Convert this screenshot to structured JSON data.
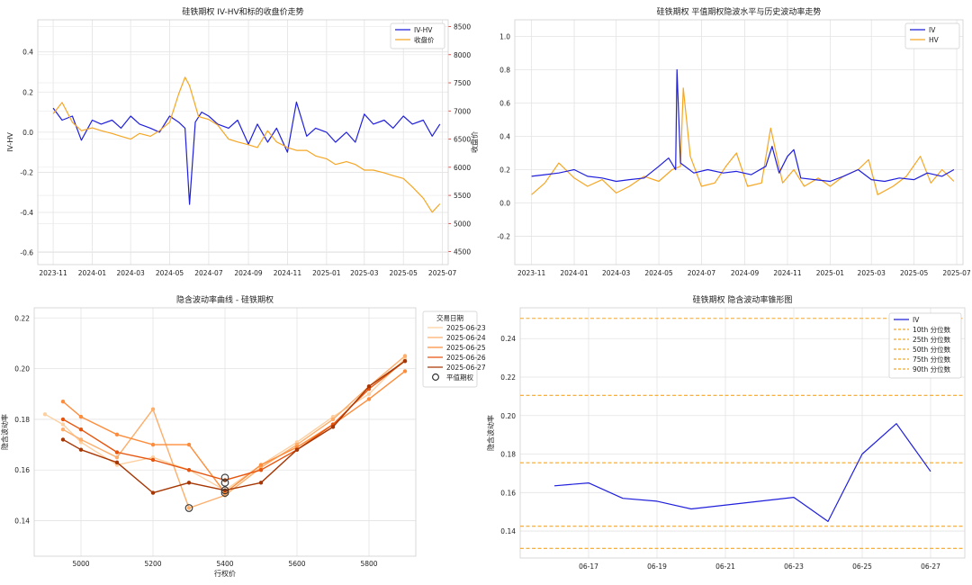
{
  "chart_data": [
    {
      "type": "line",
      "title": "硅铁期权 IV-HV和标的收盘价走势",
      "ylabel": "IV-HV",
      "y2label": "收盘价",
      "ylim": [
        -0.66,
        0.56
      ],
      "y2lim": [
        4270,
        8620
      ],
      "xlim": [
        "2023-10-08",
        "2025-07-10"
      ],
      "yticks": [
        0.4,
        0.2,
        0.0,
        -0.2,
        -0.4,
        -0.6
      ],
      "ytick_labels": [
        "0.4",
        "0.2",
        "0.0",
        "-0.2",
        "-0.4",
        "-0.6"
      ],
      "y2ticks": [
        8500,
        8000,
        7500,
        7000,
        6500,
        6000,
        5500,
        5000,
        4500
      ],
      "y2tick_labels": [
        "8500",
        "8000",
        "7500",
        "7000",
        "6500",
        "6000",
        "5500",
        "5000",
        "4500"
      ],
      "xticks": [
        "2023-11-01",
        "2024-01-01",
        "2024-03-01",
        "2024-05-01",
        "2024-07-01",
        "2024-09-01",
        "2024-11-01",
        "2025-01-01",
        "2025-03-01",
        "2025-05-01",
        "2025-07-01"
      ],
      "xtick_labels": [
        "2023-11",
        "2024-01",
        "2024-03",
        "2024-05",
        "2024-07",
        "2024-09",
        "2024-11",
        "2025-01",
        "2025-03",
        "2025-05",
        "2025-07"
      ],
      "grid": true,
      "legend": "top-right",
      "series": [
        {
          "name": "IV-HV",
          "axis": "left",
          "color": "#1f1fdc",
          "x": [
            "2023-11-01",
            "2023-11-15",
            "2023-12-01",
            "2023-12-15",
            "2024-01-01",
            "2024-01-15",
            "2024-02-01",
            "2024-02-15",
            "2024-03-01",
            "2024-03-15",
            "2024-04-01",
            "2024-04-15",
            "2024-05-01",
            "2024-05-15",
            "2024-05-25",
            "2024-06-01",
            "2024-06-10",
            "2024-06-20",
            "2024-07-01",
            "2024-07-15",
            "2024-08-01",
            "2024-08-15",
            "2024-09-01",
            "2024-09-15",
            "2024-10-01",
            "2024-10-15",
            "2024-11-01",
            "2024-11-15",
            "2024-12-01",
            "2024-12-15",
            "2025-01-01",
            "2025-01-15",
            "2025-02-01",
            "2025-02-15",
            "2025-03-01",
            "2025-03-15",
            "2025-04-01",
            "2025-04-15",
            "2025-05-01",
            "2025-05-15",
            "2025-06-01",
            "2025-06-15",
            "2025-06-27"
          ],
          "y": [
            0.12,
            0.06,
            0.08,
            -0.04,
            0.06,
            0.04,
            0.06,
            0.02,
            0.08,
            0.04,
            0.02,
            0.0,
            0.08,
            0.05,
            0.02,
            -0.36,
            0.05,
            0.1,
            0.08,
            0.04,
            0.02,
            0.06,
            -0.06,
            0.04,
            -0.05,
            0.02,
            -0.1,
            0.15,
            -0.02,
            0.02,
            0.0,
            -0.05,
            0.0,
            -0.05,
            0.09,
            0.04,
            0.06,
            0.02,
            0.08,
            0.04,
            0.06,
            -0.02,
            0.04
          ]
        },
        {
          "name": "收盘价",
          "axis": "right",
          "color": "#f5a623",
          "x": [
            "2023-11-01",
            "2023-11-15",
            "2023-12-01",
            "2023-12-15",
            "2024-01-01",
            "2024-01-15",
            "2024-02-01",
            "2024-02-15",
            "2024-03-01",
            "2024-03-15",
            "2024-04-01",
            "2024-04-15",
            "2024-05-01",
            "2024-05-15",
            "2024-05-25",
            "2024-06-01",
            "2024-06-15",
            "2024-07-01",
            "2024-07-15",
            "2024-08-01",
            "2024-08-15",
            "2024-09-01",
            "2024-09-15",
            "2024-10-01",
            "2024-10-15",
            "2024-11-01",
            "2024-11-15",
            "2024-12-01",
            "2024-12-15",
            "2025-01-01",
            "2025-01-15",
            "2025-02-01",
            "2025-02-15",
            "2025-03-01",
            "2025-03-15",
            "2025-04-01",
            "2025-04-15",
            "2025-05-01",
            "2025-05-15",
            "2025-06-01",
            "2025-06-15",
            "2025-06-27"
          ],
          "y": [
            6950,
            7150,
            6800,
            6650,
            6700,
            6650,
            6600,
            6550,
            6500,
            6600,
            6550,
            6650,
            6800,
            7300,
            7600,
            7450,
            6900,
            6850,
            6750,
            6500,
            6450,
            6400,
            6350,
            6650,
            6450,
            6350,
            6300,
            6300,
            6200,
            6150,
            6050,
            6100,
            6050,
            5950,
            5950,
            5900,
            5850,
            5800,
            5650,
            5450,
            5200,
            5350
          ]
        }
      ]
    },
    {
      "type": "line",
      "title": "硅铁期权 平值期权隐波水平与历史波动率走势",
      "ylim": [
        -0.37,
        1.1
      ],
      "xlim": [
        "2023-10-08",
        "2025-07-10"
      ],
      "yticks": [
        1.0,
        0.8,
        0.6,
        0.4,
        0.2,
        0.0,
        -0.2
      ],
      "ytick_labels": [
        "1.0",
        "0.8",
        "0.6",
        "0.4",
        "0.2",
        "0.0",
        "-0.2"
      ],
      "xticks": [
        "2023-11-01",
        "2024-01-01",
        "2024-03-01",
        "2024-05-01",
        "2024-07-01",
        "2024-09-01",
        "2024-11-01",
        "2025-01-01",
        "2025-03-01",
        "2025-05-01",
        "2025-07-01"
      ],
      "xtick_labels": [
        "2023-11",
        "2024-01",
        "2024-03",
        "2024-05",
        "2024-07",
        "2024-09",
        "2024-11",
        "2025-01",
        "2025-03",
        "2025-05",
        "2025-07"
      ],
      "grid": true,
      "legend": "top-right",
      "series": [
        {
          "name": "IV",
          "color": "#1f1fdc",
          "x": [
            "2023-11-01",
            "2023-11-20",
            "2023-12-10",
            "2024-01-01",
            "2024-01-20",
            "2024-02-10",
            "2024-03-01",
            "2024-03-20",
            "2024-04-10",
            "2024-05-01",
            "2024-05-15",
            "2024-05-25",
            "2024-05-27",
            "2024-06-01",
            "2024-06-20",
            "2024-07-10",
            "2024-08-01",
            "2024-08-20",
            "2024-09-10",
            "2024-10-01",
            "2024-10-10",
            "2024-10-20",
            "2024-11-01",
            "2024-11-10",
            "2024-11-20",
            "2024-12-10",
            "2025-01-01",
            "2025-01-20",
            "2025-02-10",
            "2025-03-01",
            "2025-03-20",
            "2025-04-10",
            "2025-05-01",
            "2025-05-20",
            "2025-06-10",
            "2025-06-27"
          ],
          "y": [
            0.16,
            0.17,
            0.18,
            0.2,
            0.16,
            0.15,
            0.13,
            0.14,
            0.15,
            0.22,
            0.27,
            0.2,
            0.8,
            0.24,
            0.18,
            0.2,
            0.18,
            0.19,
            0.17,
            0.22,
            0.34,
            0.18,
            0.28,
            0.32,
            0.15,
            0.14,
            0.13,
            0.16,
            0.2,
            0.14,
            0.13,
            0.15,
            0.14,
            0.18,
            0.16,
            0.2
          ]
        },
        {
          "name": "HV",
          "color": "#f5a623",
          "x": [
            "2023-11-01",
            "2023-11-20",
            "2023-12-10",
            "2024-01-01",
            "2024-01-20",
            "2024-02-10",
            "2024-03-01",
            "2024-03-20",
            "2024-04-10",
            "2024-05-01",
            "2024-05-20",
            "2024-06-01",
            "2024-06-05",
            "2024-06-15",
            "2024-07-01",
            "2024-07-20",
            "2024-08-05",
            "2024-08-20",
            "2024-09-05",
            "2024-09-25",
            "2024-10-08",
            "2024-10-25",
            "2024-11-10",
            "2024-11-25",
            "2024-12-15",
            "2025-01-01",
            "2025-01-20",
            "2025-02-10",
            "2025-02-25",
            "2025-03-10",
            "2025-04-01",
            "2025-04-20",
            "2025-05-10",
            "2025-05-25",
            "2025-06-10",
            "2025-06-27"
          ],
          "y": [
            0.05,
            0.12,
            0.24,
            0.15,
            0.1,
            0.14,
            0.06,
            0.1,
            0.16,
            0.13,
            0.2,
            0.22,
            0.69,
            0.28,
            0.1,
            0.12,
            0.22,
            0.3,
            0.1,
            0.12,
            0.45,
            0.12,
            0.2,
            0.1,
            0.15,
            0.1,
            0.16,
            0.2,
            0.26,
            0.05,
            0.1,
            0.16,
            0.28,
            0.12,
            0.2,
            0.13
          ]
        }
      ]
    },
    {
      "type": "line",
      "title": "隐含波动率曲线 - 硅铁期权",
      "xlabel": "行权价",
      "ylabel": "隐含波动率",
      "xlim": [
        4870,
        5930
      ],
      "ylim": [
        0.126,
        0.224
      ],
      "xticks": [
        5000,
        5200,
        5400,
        5600,
        5800
      ],
      "xtick_labels": [
        "5000",
        "5200",
        "5400",
        "5600",
        "5800"
      ],
      "yticks": [
        0.22,
        0.2,
        0.18,
        0.16,
        0.14
      ],
      "ytick_labels": [
        "0.22",
        "0.20",
        "0.18",
        "0.16",
        "0.14"
      ],
      "legend_title": "交易日期",
      "legend": "top-right",
      "grid": true,
      "series": [
        {
          "name": "2025-06-23",
          "color": "#fdd0a2",
          "x": [
            4900,
            4950,
            5000,
            5100,
            5200,
            5300,
            5400,
            5500,
            5600,
            5700,
            5800,
            5900
          ],
          "y": [
            0.182,
            0.178,
            0.171,
            0.162,
            0.165,
            0.16,
            0.152,
            0.162,
            0.171,
            0.181,
            0.19,
            0.204
          ]
        },
        {
          "name": "2025-06-24",
          "color": "#fdae6b",
          "x": [
            4950,
            5000,
            5100,
            5200,
            5300,
            5400,
            5500,
            5600,
            5700,
            5800,
            5900
          ],
          "y": [
            0.176,
            0.172,
            0.165,
            0.184,
            0.145,
            0.15,
            0.161,
            0.17,
            0.18,
            0.193,
            0.205
          ]
        },
        {
          "name": "2025-06-25",
          "color": "#fd8d3c",
          "x": [
            4950,
            5000,
            5100,
            5200,
            5300,
            5400,
            5500,
            5600,
            5700,
            5800,
            5900
          ],
          "y": [
            0.187,
            0.181,
            0.174,
            0.17,
            0.17,
            0.151,
            0.162,
            0.169,
            0.178,
            0.188,
            0.199
          ]
        },
        {
          "name": "2025-06-26",
          "color": "#e6550d",
          "x": [
            4950,
            5000,
            5100,
            5200,
            5300,
            5400,
            5500,
            5600,
            5700,
            5800,
            5900
          ],
          "y": [
            0.18,
            0.176,
            0.167,
            0.164,
            0.16,
            0.156,
            0.16,
            0.168,
            0.178,
            0.192,
            0.203
          ]
        },
        {
          "name": "2025-06-27",
          "color": "#a63603",
          "x": [
            4950,
            5000,
            5100,
            5200,
            5300,
            5400,
            5500,
            5600,
            5700,
            5800,
            5900
          ],
          "y": [
            0.172,
            0.168,
            0.163,
            0.151,
            0.155,
            0.152,
            0.155,
            0.168,
            0.177,
            0.193,
            0.203
          ]
        }
      ],
      "atm_marker_label": "平值期权",
      "atm_points": [
        {
          "x": 5300,
          "y": 0.145
        },
        {
          "x": 5400,
          "y": 0.157
        },
        {
          "x": 5400,
          "y": 0.155
        },
        {
          "x": 5400,
          "y": 0.152
        },
        {
          "x": 5400,
          "y": 0.151
        }
      ]
    },
    {
      "type": "line",
      "title": "硅铁期权 隐含波动率锥形图",
      "ylabel": "隐含波动率",
      "xlim": [
        "06-15",
        "06-28"
      ],
      "ylim": [
        0.126,
        0.256
      ],
      "yticks": [
        0.24,
        0.22,
        0.2,
        0.18,
        0.16,
        0.14
      ],
      "ytick_labels": [
        "0.24",
        "0.22",
        "0.20",
        "0.18",
        "0.16",
        "0.14"
      ],
      "xticks": [
        "06-17",
        "06-19",
        "06-21",
        "06-23",
        "06-25",
        "06-27"
      ],
      "xtick_labels": [
        "06-17",
        "06-19",
        "06-21",
        "06-23",
        "06-25",
        "06-27"
      ],
      "grid": true,
      "legend": "top-right",
      "series": [
        {
          "name": "IV",
          "color": "#1f1fdc",
          "x": [
            16.0,
            17.0,
            18.0,
            19.0,
            20.0,
            23.0,
            24.0,
            25.0,
            26.0,
            27.0
          ],
          "y": [
            0.1635,
            0.165,
            0.157,
            0.1555,
            0.1515,
            0.1575,
            0.145,
            0.18,
            0.1958,
            0.171
          ]
        }
      ],
      "percentiles": [
        {
          "name": "10th 分位数",
          "value": 0.131
        },
        {
          "name": "25th 分位数",
          "value": 0.1425
        },
        {
          "name": "50th 分位数",
          "value": 0.1755
        },
        {
          "name": "75th 分位数",
          "value": 0.2105
        },
        {
          "name": "90th 分位数",
          "value": 0.2505
        }
      ],
      "percentile_color": "#f5a623"
    }
  ]
}
